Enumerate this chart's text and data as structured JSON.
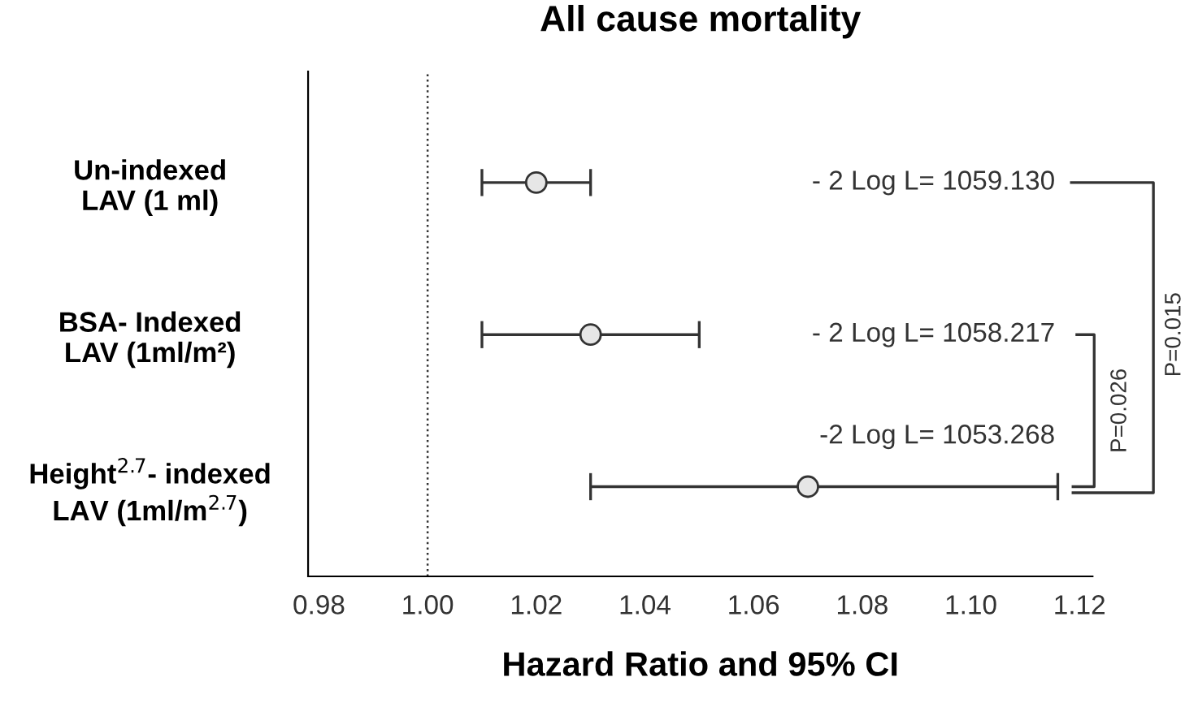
{
  "chart_data": {
    "type": "scatter",
    "orientation": "horizontal",
    "title": "All cause mortality",
    "xlabel": "Hazard Ratio and 95% CI",
    "categories": [
      "Un-indexed\nLAV (1 ml)",
      "BSA- Indexed\nLAV (1ml/m²)",
      "Height$^{2.7}$- indexed\nLAV (1ml/m$^{2.7}$)"
    ],
    "values": [
      1.02,
      1.03,
      1.07
    ],
    "errors": [
      [
        1.01,
        1.03
      ],
      [
        1.01,
        1.05
      ],
      [
        1.03,
        1.116
      ]
    ],
    "color": "#e6e6e6",
    "marker": "circle",
    "xlim": [
      0.978,
      1.1224
    ],
    "xticks": [
      0.98,
      {
        "value": 1.0,
        "label": "1.00"
      },
      1.02,
      1.04,
      1.06,
      1.08,
      {
        "value": 1.1,
        "label": "1.10"
      },
      1.12
    ],
    "ref_lines": [
      {
        "axis": "x",
        "value": 1.0,
        "line_style": "dotted",
        "color": "#333333"
      }
    ],
    "annotations": [
      "- 2 Log L= 1059.130",
      "- 2 Log L= 1058.217",
      "-2 Log L= 1053.268",
      "P=0.026",
      "P=0.015"
    ],
    "grid": false
  }
}
